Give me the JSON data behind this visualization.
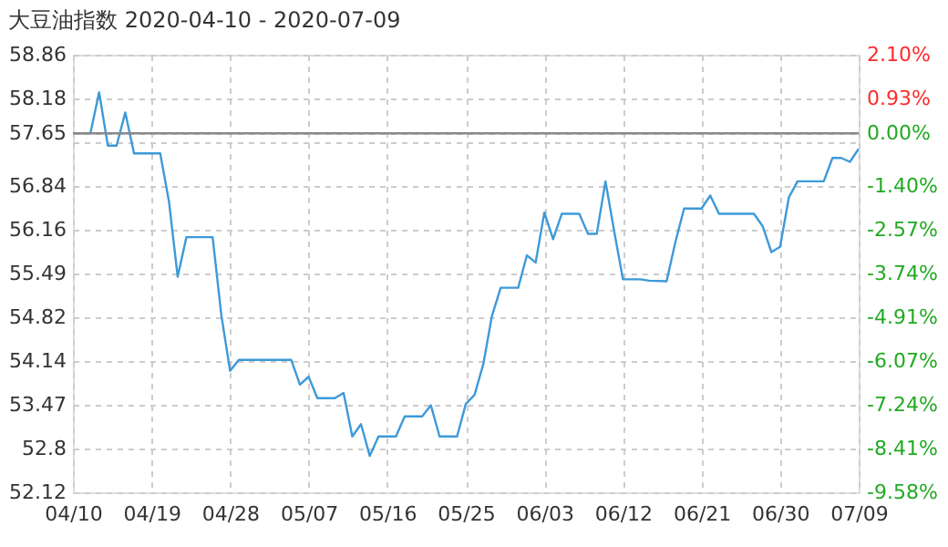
{
  "chart_data": {
    "type": "line",
    "title": "大豆油指数 2020-04-10 - 2020-07-09",
    "x": [
      "2020-04-10",
      "2020-04-12",
      "2020-04-13",
      "2020-04-14",
      "2020-04-15",
      "2020-04-16",
      "2020-04-17",
      "2020-04-20",
      "2020-04-21",
      "2020-04-22",
      "2020-04-23",
      "2020-04-26",
      "2020-04-27",
      "2020-04-28",
      "2020-04-29",
      "2020-05-05",
      "2020-05-06",
      "2020-05-07",
      "2020-05-08",
      "2020-05-10",
      "2020-05-11",
      "2020-05-12",
      "2020-05-13",
      "2020-05-14",
      "2020-05-15",
      "2020-05-17",
      "2020-05-18",
      "2020-05-20",
      "2020-05-21",
      "2020-05-22",
      "2020-05-24",
      "2020-05-25",
      "2020-05-26",
      "2020-05-27",
      "2020-05-28",
      "2020-05-29",
      "2020-05-31",
      "2020-06-01",
      "2020-06-02",
      "2020-06-03",
      "2020-06-04",
      "2020-06-05",
      "2020-06-07",
      "2020-06-08",
      "2020-06-09",
      "2020-06-10",
      "2020-06-11",
      "2020-06-12",
      "2020-06-14",
      "2020-06-15",
      "2020-06-17",
      "2020-06-18",
      "2020-06-19",
      "2020-06-21",
      "2020-06-22",
      "2020-06-23",
      "2020-06-27",
      "2020-06-28",
      "2020-06-29",
      "2020-06-30",
      "2020-07-01",
      "2020-07-02",
      "2020-07-05",
      "2020-07-06",
      "2020-07-07",
      "2020-07-08",
      "2020-07-09"
    ],
    "series": [
      {
        "color": "#3d9ad8",
        "values": [
          57.65,
          57.65,
          58.28,
          57.46,
          57.46,
          57.97,
          57.34,
          57.34,
          56.6,
          55.44,
          56.05,
          56.05,
          54.85,
          53.99,
          54.16,
          54.16,
          53.78,
          53.9,
          53.57,
          53.57,
          53.65,
          52.98,
          53.17,
          52.68,
          52.98,
          52.98,
          53.29,
          53.29,
          53.46,
          52.98,
          52.98,
          53.48,
          53.62,
          54.09,
          54.84,
          55.27,
          55.27,
          55.77,
          55.66,
          56.43,
          56.02,
          56.41,
          56.41,
          56.1,
          56.1,
          56.91,
          56.14,
          55.4,
          55.4,
          55.38,
          55.37,
          55.97,
          56.49,
          56.49,
          56.69,
          56.41,
          56.41,
          56.22,
          55.82,
          55.9,
          56.66,
          56.91,
          56.91,
          57.27,
          57.27,
          57.21,
          57.41
        ]
      }
    ],
    "xlim": [
      "2020-04-10",
      "2020-07-09"
    ],
    "xticks": [
      {
        "value": "2020-04-10",
        "label": "04/10"
      },
      {
        "value": "2020-04-19",
        "label": "04/19"
      },
      {
        "value": "2020-04-28",
        "label": "04/28"
      },
      {
        "value": "2020-05-07",
        "label": "05/07"
      },
      {
        "value": "2020-05-16",
        "label": "05/16"
      },
      {
        "value": "2020-05-25",
        "label": "05/25"
      },
      {
        "value": "2020-06-03",
        "label": "06/03"
      },
      {
        "value": "2020-06-12",
        "label": "06/12"
      },
      {
        "value": "2020-06-21",
        "label": "06/21"
      },
      {
        "value": "2020-06-30",
        "label": "06/30"
      },
      {
        "value": "2020-07-09",
        "label": "07/09"
      }
    ],
    "ylim": [
      52.12,
      58.86
    ],
    "yticks": [
      58.86,
      58.18,
      57.65,
      {
        "value": 57.51,
        "label": null
      },
      56.84,
      56.16,
      55.49,
      54.82,
      54.14,
      53.47,
      52.8,
      52.12
    ],
    "y2lim": [
      -9.58,
      2.1
    ],
    "y2ticks": [
      {
        "value": 2.1,
        "label": "2.10%"
      },
      {
        "value": 0.93,
        "label": "0.93%"
      },
      {
        "value": 0,
        "label": "0.00%"
      },
      {
        "value": -0.23,
        "label": null
      },
      {
        "value": -1.4,
        "label": "-1.40%"
      },
      {
        "value": -2.57,
        "label": "-2.57%"
      },
      {
        "value": -3.74,
        "label": "-3.74%"
      },
      {
        "value": -4.91,
        "label": "-4.91%"
      },
      {
        "value": -6.07,
        "label": "-6.07%"
      },
      {
        "value": -7.24,
        "label": "-7.24%"
      },
      {
        "value": -8.41,
        "label": "-8.41%"
      },
      {
        "value": -9.58,
        "label": "-9.58%"
      }
    ],
    "ref_lines": [
      {
        "axis": "y2",
        "value": 0,
        "color": "#888888",
        "line_style": "solid"
      }
    ],
    "grid": true
  }
}
